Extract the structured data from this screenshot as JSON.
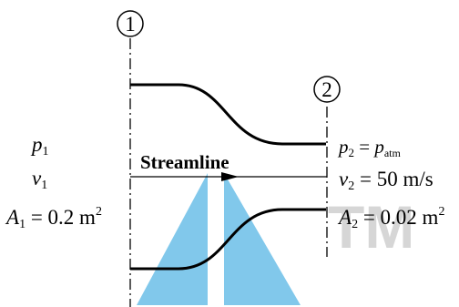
{
  "stations": {
    "one": "1",
    "two": "2"
  },
  "left_labels": {
    "p": "p",
    "p_sub": "1",
    "v": "v",
    "v_sub": "1",
    "A": "A",
    "A_sub": "1",
    "A_value": " = 0.2 m",
    "A_exp": "2"
  },
  "streamline_label": "Streamline",
  "right_labels": {
    "p": "p",
    "p_sub": "2",
    "p_eq": " = ",
    "p_rhs": "p",
    "p_rhs_sub": "atm",
    "v": "v",
    "v_sub": "2",
    "v_value": " = 50 m/s",
    "A": "A",
    "A_sub": "2",
    "A_value": " = 0.02 m",
    "A_exp": "2"
  },
  "watermark": "TM",
  "colors": {
    "ink": "#000000",
    "watermark_blue": "#3aa9e0",
    "watermark_gray": "#cfcfcf"
  }
}
